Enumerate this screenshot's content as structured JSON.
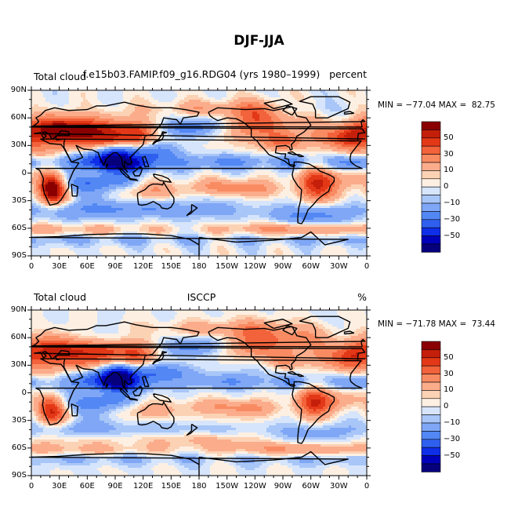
{
  "figure": {
    "title": "DJF-JJA"
  },
  "colors": {
    "levels": [
      -60,
      -50,
      -40,
      -30,
      -20,
      -10,
      -5,
      0,
      5,
      10,
      20,
      30,
      40,
      50,
      60
    ],
    "palette": [
      "#06007d",
      "#0000ba",
      "#0f2ee8",
      "#2f5fee",
      "#5287f4",
      "#7fa7f6",
      "#a9c6f8",
      "#d6e5fb",
      "#fdf0e3",
      "#fcd2b5",
      "#fbac8b",
      "#f98b62",
      "#f2623b",
      "#e33817",
      "#c41f0a",
      "#8a0000"
    ],
    "colorbar_labels": [
      "50",
      "30",
      "10",
      "0",
      "−10",
      "−30",
      "−50"
    ]
  },
  "axes": {
    "lat_labels": [
      "90N",
      "60N",
      "30N",
      "0",
      "30S",
      "60S",
      "90S"
    ],
    "lon_labels": [
      "0",
      "30E",
      "60E",
      "90E",
      "120E",
      "150E",
      "180",
      "150W",
      "120W",
      "90W",
      "60W",
      "30W",
      "0"
    ]
  },
  "panels": [
    {
      "left_label": "Total cloud",
      "center_label": "f.e15b03.FAMIP.f09_g16.RDG04 (yrs 1980–1999)",
      "right_label": "percent",
      "min_max": "MIN = −77.04 MAX =  82.75",
      "chart_data": {
        "type": "heatmap",
        "variable": "Total cloud",
        "units": "percent",
        "min": -77.04,
        "max": 82.75,
        "lon_range": [
          0,
          360
        ],
        "lat_range": [
          -90,
          90
        ]
      }
    },
    {
      "left_label": "Total cloud",
      "center_label": "ISCCP",
      "right_label": "%",
      "min_max": "MIN = −71.78 MAX =  73.44",
      "chart_data": {
        "type": "heatmap",
        "variable": "Total cloud",
        "units": "%",
        "min": -71.78,
        "max": 73.44,
        "lon_range": [
          0,
          360
        ],
        "lat_range": [
          -90,
          90
        ]
      }
    }
  ]
}
